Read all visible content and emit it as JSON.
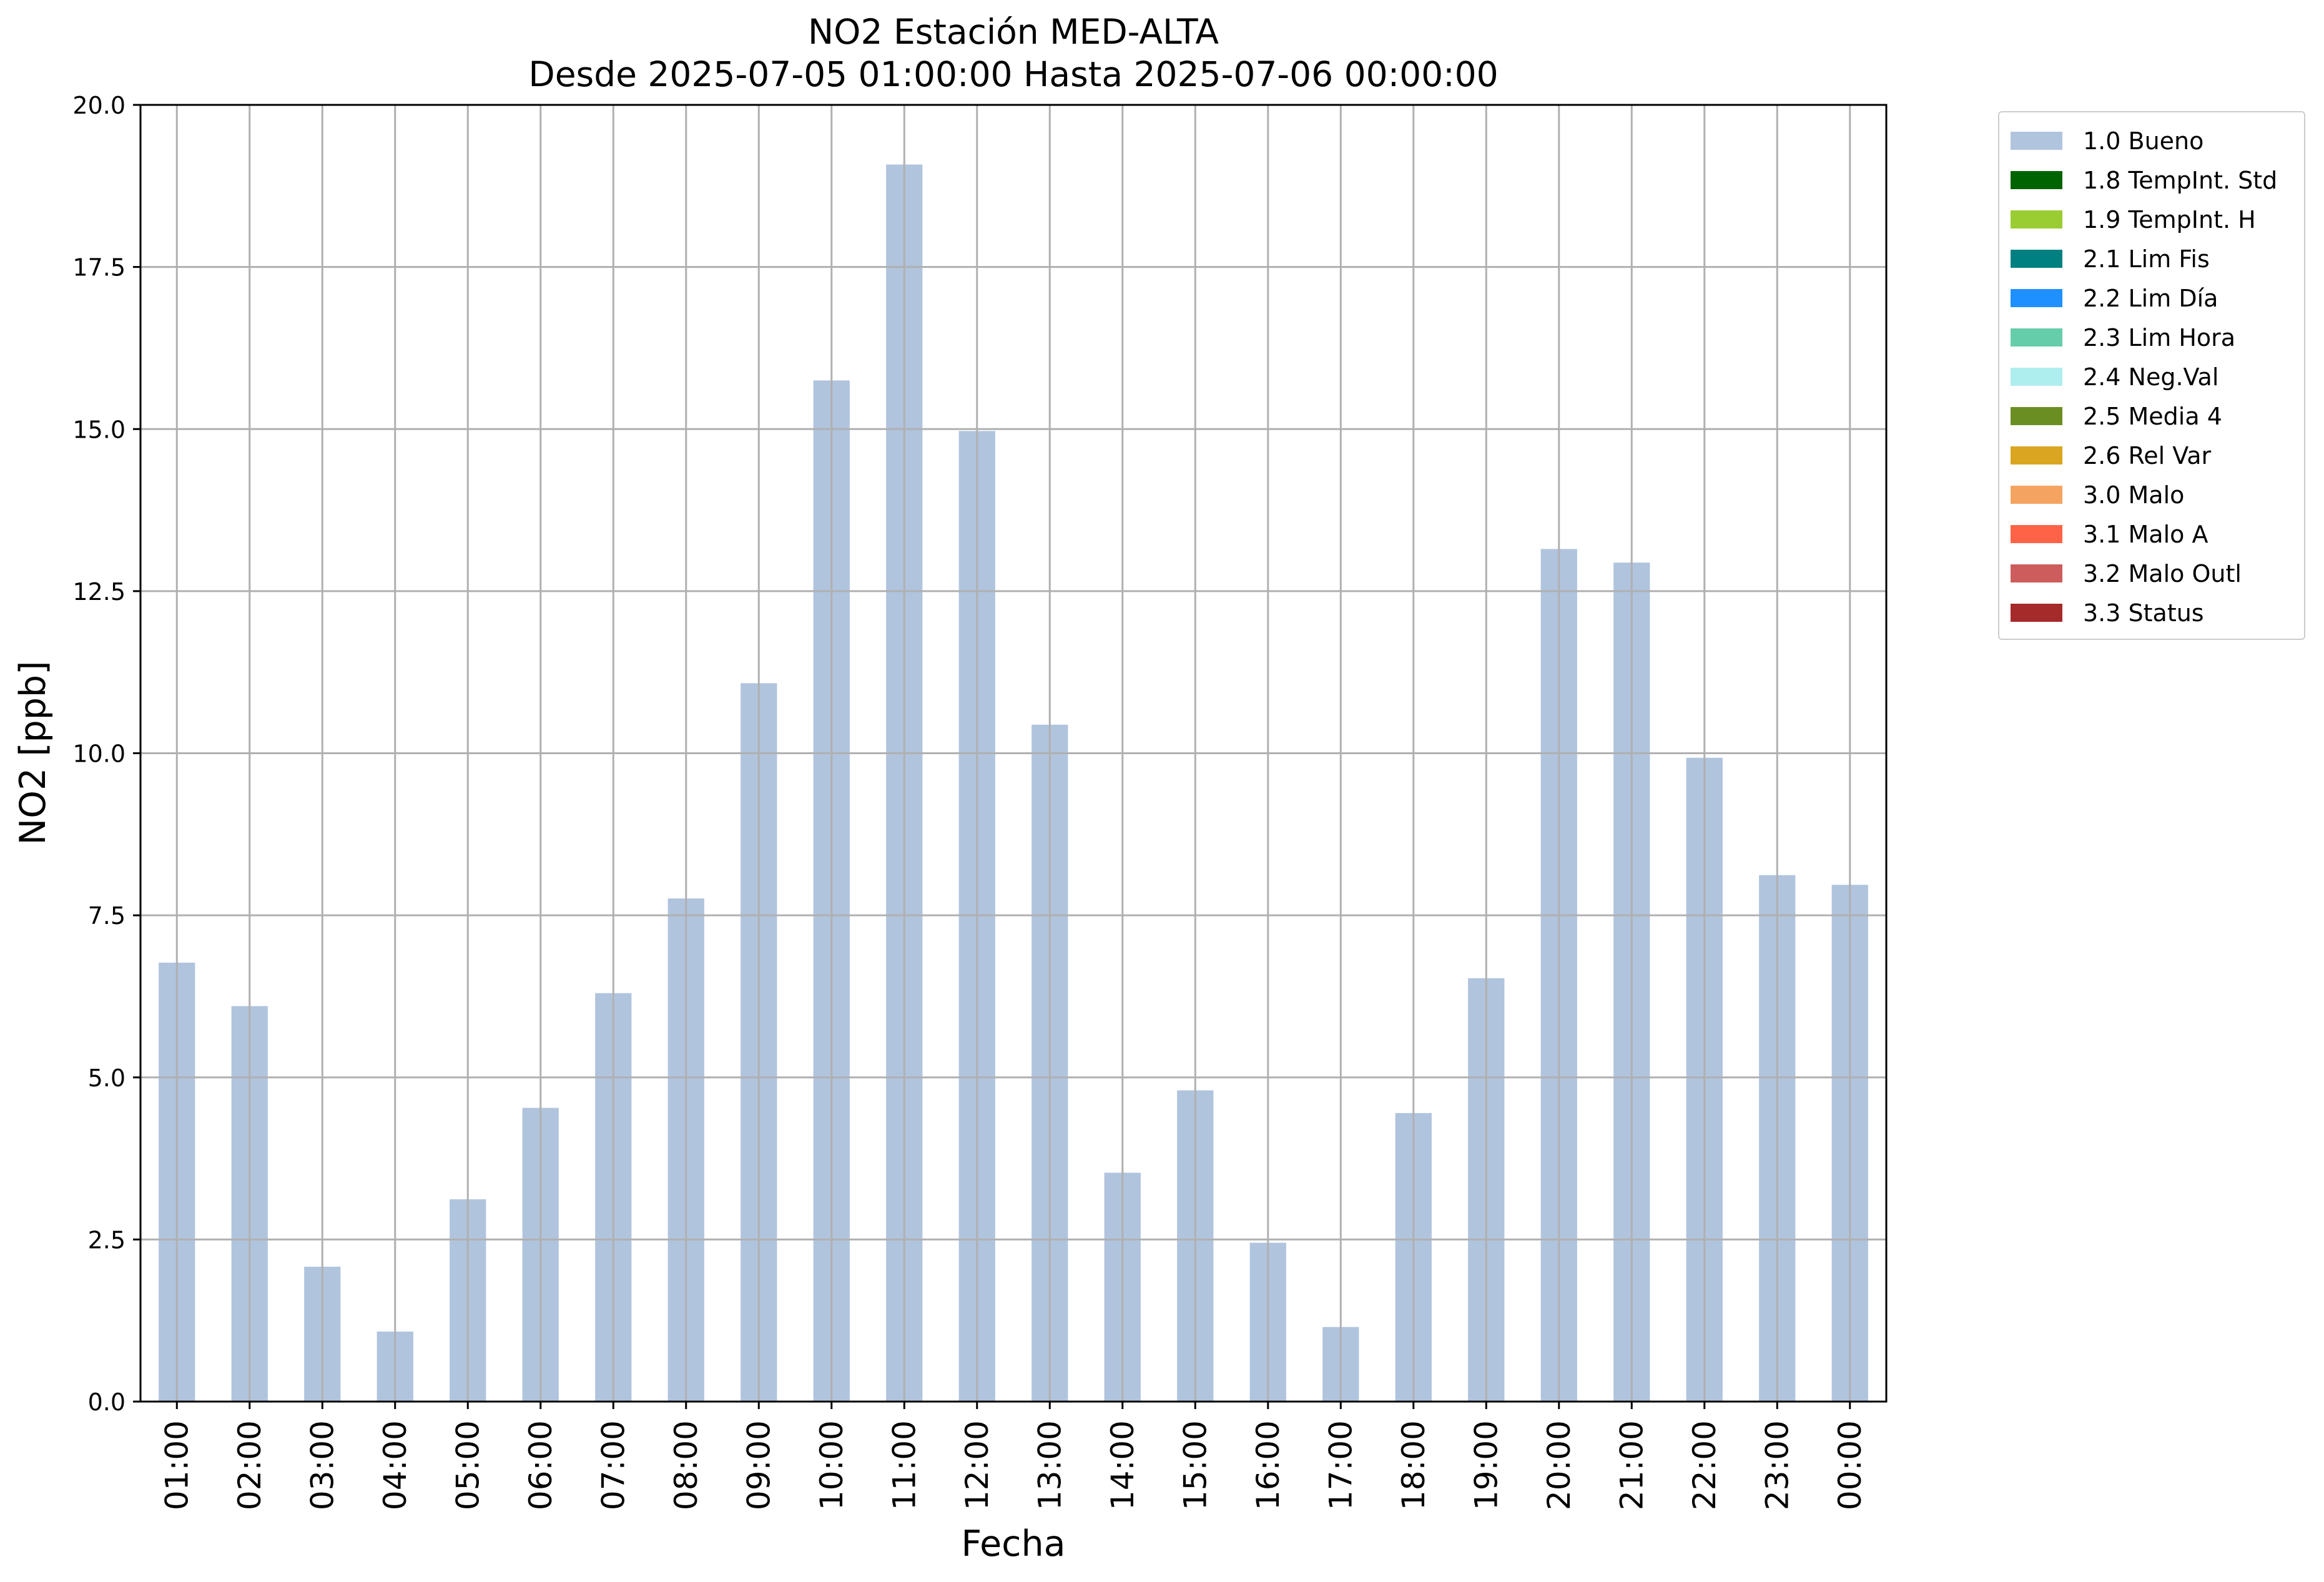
{
  "chart_data": {
    "type": "bar",
    "title": "NO2 Estación MED-ALTA",
    "subtitle": "Desde 2025-07-05 01:00:00 Hasta 2025-07-06 00:00:00",
    "xlabel": "Fecha",
    "ylabel": "NO2 [ppb]",
    "ylim": [
      0,
      20
    ],
    "yticks": [
      "0.0",
      "2.5",
      "5.0",
      "7.5",
      "10.0",
      "12.5",
      "15.0",
      "17.5",
      "20.0"
    ],
    "grid": true,
    "legend_position": "outside-right-top",
    "categories": [
      "01:00",
      "02:00",
      "03:00",
      "04:00",
      "05:00",
      "06:00",
      "07:00",
      "08:00",
      "09:00",
      "10:00",
      "11:00",
      "12:00",
      "13:00",
      "14:00",
      "15:00",
      "16:00",
      "17:00",
      "18:00",
      "19:00",
      "20:00",
      "21:00",
      "22:00",
      "23:00",
      "00:00"
    ],
    "series": [
      {
        "name": "1.0 Bueno",
        "color": "#b0c4de",
        "values": [
          6.77,
          6.1,
          2.08,
          1.08,
          3.12,
          4.53,
          6.3,
          7.76,
          11.08,
          15.75,
          19.08,
          14.97,
          10.44,
          3.53,
          4.8,
          2.45,
          1.15,
          4.45,
          6.53,
          13.15,
          12.94,
          9.93,
          8.12,
          7.97
        ]
      }
    ],
    "legend": [
      {
        "label": "1.0 Bueno",
        "color": "#b0c4de"
      },
      {
        "label": "1.8 TempInt. Std",
        "color": "#006400"
      },
      {
        "label": "1.9 TempInt. H",
        "color": "#9acd32"
      },
      {
        "label": "2.1 Lim Fis",
        "color": "#008080"
      },
      {
        "label": "2.2 Lim Día",
        "color": "#1e90ff"
      },
      {
        "label": "2.3 Lim Hora",
        "color": "#66cdaa"
      },
      {
        "label": "2.4 Neg.Val",
        "color": "#afeeee"
      },
      {
        "label": "2.5 Media 4",
        "color": "#6b8e23"
      },
      {
        "label": "2.6 Rel Var",
        "color": "#daa520"
      },
      {
        "label": "3.0 Malo",
        "color": "#f4a460"
      },
      {
        "label": "3.1 Malo A",
        "color": "#ff6347"
      },
      {
        "label": "3.2 Malo Outl",
        "color": "#cd5c5c"
      },
      {
        "label": "3.3 Status",
        "color": "#a52a2a"
      }
    ]
  }
}
